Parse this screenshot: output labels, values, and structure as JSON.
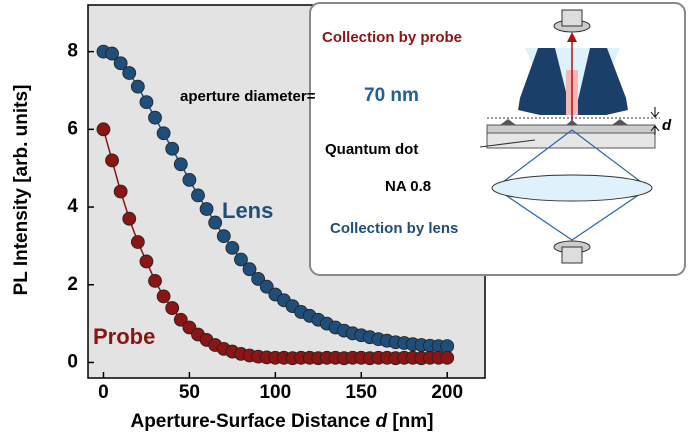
{
  "chart_data": {
    "type": "scatter",
    "ylabel": "PL Intensity [arb. units]",
    "xlabel": [
      "Aperture-Surface Distance",
      "d",
      "[nm]"
    ],
    "xlim": [
      -9,
      222
    ],
    "xticks": [
      0,
      50,
      100,
      150,
      200
    ],
    "ylim": [
      -0.4,
      9.2
    ],
    "yticks": [
      0,
      2,
      4,
      6,
      8
    ],
    "x": [
      0,
      5,
      10,
      15,
      20,
      25,
      30,
      35,
      40,
      45,
      50,
      55,
      60,
      65,
      70,
      75,
      80,
      85,
      90,
      95,
      100,
      105,
      110,
      115,
      120,
      125,
      130,
      135,
      140,
      145,
      150,
      155,
      160,
      165,
      170,
      175,
      180,
      185,
      190,
      195,
      200
    ],
    "series": [
      {
        "name": "Lens",
        "color": "#1f4e7a",
        "values": [
          8,
          7.95,
          7.7,
          7.45,
          7.1,
          6.7,
          6.3,
          5.9,
          5.5,
          5.1,
          4.7,
          4.3,
          3.95,
          3.6,
          3.25,
          2.95,
          2.65,
          2.4,
          2.15,
          1.95,
          1.75,
          1.6,
          1.45,
          1.3,
          1.2,
          1.1,
          1.0,
          0.9,
          0.82,
          0.75,
          0.7,
          0.65,
          0.6,
          0.56,
          0.52,
          0.5,
          0.47,
          0.45,
          0.43,
          0.42,
          0.42
        ]
      },
      {
        "name": "Probe",
        "color": "#8b1414",
        "values": [
          6,
          5.2,
          4.4,
          3.7,
          3.1,
          2.6,
          2.1,
          1.7,
          1.4,
          1.1,
          0.9,
          0.72,
          0.58,
          0.45,
          0.35,
          0.28,
          0.22,
          0.18,
          0.15,
          0.13,
          0.12,
          0.12,
          0.11,
          0.12,
          0.12,
          0.11,
          0.12,
          0.12,
          0.11,
          0.12,
          0.12,
          0.11,
          0.12,
          0.12,
          0.11,
          0.12,
          0.12,
          0.11,
          0.12,
          0.12,
          0.12
        ]
      }
    ],
    "annotations": {
      "collection_probe": "Collection by probe",
      "aperture": "aperture diameter=",
      "aperture_value": "70 nm",
      "d": "d",
      "quantum_dot": "Quantum dot",
      "na": "NA 0.8",
      "collection_lens": "Collection by lens"
    }
  }
}
